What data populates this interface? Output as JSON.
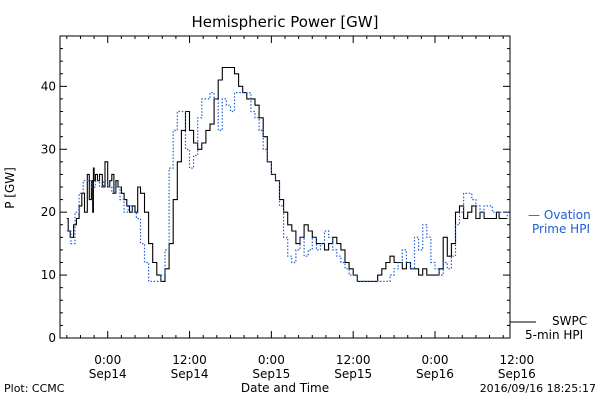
{
  "chart_data": {
    "type": "line",
    "title": "Hemispheric Power [GW]",
    "xlabel": "Date and Time",
    "ylabel": "P [GW]",
    "ylim": [
      0,
      48
    ],
    "xlim_hours": [
      -7,
      59
    ],
    "yticks": [
      0,
      10,
      20,
      30,
      40
    ],
    "xticks": [
      {
        "t": 0,
        "time": "0:00",
        "date": "Sep14"
      },
      {
        "t": 12,
        "time": "12:00",
        "date": "Sep14"
      },
      {
        "t": 24,
        "time": "0:00",
        "date": "Sep15"
      },
      {
        "t": 36,
        "time": "12:00",
        "date": "Sep15"
      },
      {
        "t": 48,
        "time": "0:00",
        "date": "Sep16"
      },
      {
        "t": 60,
        "time": "12:00",
        "date": "Sep16"
      }
    ],
    "grid": false,
    "series": [
      {
        "name": "SWPC 5-min HPI",
        "color": "#000000",
        "style": "solid",
        "x": [
          -6,
          -5.8,
          -5.5,
          -5,
          -4.6,
          -4.2,
          -3.8,
          -3.4,
          -3.0,
          -2.7,
          -2.4,
          -2.2,
          -2.1,
          -2.0,
          -1.8,
          -1.5,
          -1.2,
          -0.8,
          -0.4,
          0,
          0.3,
          0.6,
          0.9,
          1.2,
          1.5,
          2.0,
          2.4,
          2.8,
          3.2,
          3.6,
          4.0,
          4.4,
          4.8,
          5.4,
          6.0,
          6.6,
          7.2,
          7.8,
          8.4,
          9.0,
          9.6,
          10.2,
          10.8,
          11.4,
          12.0,
          12.6,
          13.2,
          13.8,
          14.4,
          15.0,
          15.6,
          16.2,
          16.8,
          17.4,
          18.0,
          18.6,
          19.2,
          19.8,
          20.4,
          21.0,
          21.6,
          22.2,
          22.8,
          23.4,
          24.0,
          24.6,
          25.2,
          25.8,
          26.4,
          27.0,
          27.6,
          28.2,
          28.8,
          29.4,
          30.0,
          30.6,
          31.2,
          31.8,
          32.4,
          33.0,
          33.6,
          34.2,
          34.8,
          35.4,
          36.0,
          36.6,
          37.2,
          37.8,
          38.4,
          39.0,
          39.6,
          40.2,
          40.8,
          41.4,
          42.0,
          42.6,
          43.2,
          43.8,
          44.4,
          45.0,
          45.6,
          46.2,
          46.8,
          47.4,
          48.0,
          48.6,
          49.2,
          49.8,
          50.4,
          51.0,
          51.6,
          52.2,
          52.8,
          53.4,
          54.0,
          54.6,
          55.2,
          55.8,
          56.4,
          57.0,
          57.4,
          57.8,
          58.2,
          58.6
        ],
        "y": [
          19,
          17,
          16,
          18,
          19,
          21,
          23,
          20,
          26,
          22,
          25,
          20,
          27,
          25,
          26,
          25,
          26,
          24,
          28,
          24,
          25,
          26,
          23,
          25,
          24,
          23,
          22,
          21,
          20,
          21,
          20,
          24,
          23,
          20,
          15,
          12,
          10,
          9,
          11,
          15,
          22,
          28,
          33,
          36,
          33,
          31,
          30,
          31,
          33,
          34,
          38,
          41,
          43,
          43,
          43,
          42,
          40,
          39,
          38,
          38,
          37,
          35,
          32,
          28,
          26,
          25,
          22,
          20,
          18,
          17,
          15,
          16,
          18,
          17,
          16,
          15,
          15,
          14,
          15,
          16,
          15,
          14,
          12,
          11,
          10,
          9,
          9,
          9,
          9,
          9,
          10,
          11,
          12,
          13,
          12,
          12,
          11,
          12,
          11,
          11,
          10,
          11,
          10,
          10,
          10,
          11,
          16,
          13,
          15,
          20,
          21,
          19,
          20,
          21,
          19,
          20,
          19,
          19,
          19,
          20,
          19,
          19,
          19,
          19
        ]
      },
      {
        "name": "Ovation Prime HPI",
        "color": "#1f5fd0",
        "style": "dotted",
        "x": [
          -6,
          -5.4,
          -4.8,
          -4.2,
          -3.6,
          -3.0,
          -2.4,
          -1.8,
          -1.2,
          -0.6,
          0.0,
          0.6,
          1.2,
          1.8,
          2.4,
          3.0,
          3.6,
          4.2,
          4.8,
          5.4,
          6.0,
          6.6,
          7.2,
          7.8,
          8.4,
          9.0,
          9.6,
          10.2,
          10.8,
          11.4,
          12.0,
          12.6,
          13.2,
          13.8,
          14.4,
          15.0,
          15.6,
          16.2,
          16.8,
          17.4,
          18.0,
          18.6,
          19.2,
          19.8,
          20.4,
          21.0,
          21.6,
          22.2,
          22.8,
          23.4,
          24.0,
          24.6,
          25.2,
          25.8,
          26.4,
          27.0,
          27.6,
          28.2,
          28.8,
          29.4,
          30.0,
          30.6,
          31.2,
          31.8,
          32.4,
          33.0,
          33.6,
          34.2,
          34.8,
          35.4,
          36.0,
          36.6,
          37.2,
          37.8,
          38.4,
          39.0,
          39.6,
          40.2,
          40.8,
          41.4,
          42.0,
          42.6,
          43.2,
          43.8,
          44.4,
          45.0,
          45.6,
          46.2,
          46.8,
          47.4,
          48.0,
          48.6,
          49.2,
          49.8,
          50.4,
          51.0,
          51.6,
          52.2,
          52.8,
          53.4,
          54.0,
          54.6,
          55.2,
          55.8,
          56.4,
          57.0,
          57.6,
          58.2,
          58.6
        ],
        "y": [
          17,
          15,
          20,
          23,
          25,
          25,
          24,
          25,
          24,
          25,
          24,
          23,
          24,
          22,
          20,
          21,
          20,
          19,
          15,
          12,
          9,
          9,
          9,
          10,
          14,
          27,
          33,
          36,
          36,
          30,
          27,
          29,
          35,
          38,
          38,
          39,
          38,
          33,
          38,
          37,
          36,
          39,
          39,
          39,
          39,
          36,
          35,
          33,
          30,
          28,
          26,
          25,
          21,
          16,
          13,
          12,
          14,
          16,
          13,
          14,
          16,
          14,
          15,
          17,
          16,
          14,
          13,
          12,
          11,
          10,
          10,
          9,
          9,
          9,
          9,
          9,
          9,
          9,
          9,
          10,
          11,
          12,
          14,
          12,
          11,
          16,
          14,
          18,
          16,
          12,
          11,
          10,
          12,
          11,
          13,
          18,
          20,
          23,
          23,
          22,
          21,
          20,
          21,
          21,
          20,
          20,
          20,
          20,
          19
        ]
      }
    ],
    "legend": {
      "blue": {
        "line1": "— Ovation",
        "line2": "Prime HPI"
      },
      "black": {
        "line1": "SWPC",
        "line2": "5-min HPI"
      }
    }
  },
  "footer": {
    "left": "Plot: CCMC",
    "right": "2016/09/16 18:25:17"
  },
  "colors": {
    "swpc": "#000000",
    "ovation": "#1f5fd0"
  }
}
